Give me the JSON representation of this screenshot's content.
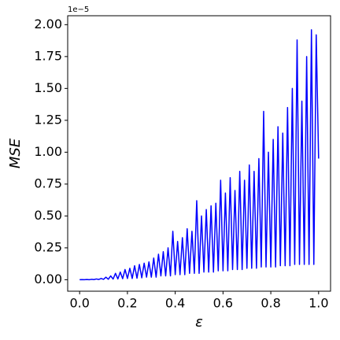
{
  "chart_data": {
    "type": "line",
    "xlabel": "ε",
    "ylabel": "MSE",
    "y_offset_label": "1e−5",
    "x": [
      0.0,
      0.01,
      0.02,
      0.03,
      0.04,
      0.05,
      0.06,
      0.07,
      0.08,
      0.09,
      0.1,
      0.11,
      0.12,
      0.13,
      0.14,
      0.15,
      0.16,
      0.17,
      0.18,
      0.19,
      0.2,
      0.21,
      0.22,
      0.23,
      0.24,
      0.25,
      0.26,
      0.27,
      0.28,
      0.29,
      0.3,
      0.31,
      0.32,
      0.33,
      0.34,
      0.35,
      0.36,
      0.37,
      0.38,
      0.39,
      0.4,
      0.41,
      0.42,
      0.43,
      0.44,
      0.45,
      0.46,
      0.47,
      0.48,
      0.49,
      0.5,
      0.51,
      0.52,
      0.53,
      0.54,
      0.55,
      0.56,
      0.57,
      0.58,
      0.59,
      0.6,
      0.61,
      0.62,
      0.63,
      0.64,
      0.65,
      0.66,
      0.67,
      0.68,
      0.69,
      0.7,
      0.71,
      0.72,
      0.73,
      0.74,
      0.75,
      0.76,
      0.77,
      0.78,
      0.79,
      0.8,
      0.81,
      0.82,
      0.83,
      0.84,
      0.85,
      0.86,
      0.87,
      0.88,
      0.89,
      0.9,
      0.91,
      0.92,
      0.93,
      0.94,
      0.95,
      0.96,
      0.97,
      0.98,
      0.99,
      1.0
    ],
    "series": [
      {
        "name": "MSE",
        "color": "#0000ff",
        "values": [
          0,
          0.001,
          0,
          0.002,
          0,
          0.003,
          0.001,
          0.006,
          0.002,
          0.01,
          0.003,
          0.02,
          0.004,
          0.03,
          0.005,
          0.05,
          0.006,
          0.06,
          0.008,
          0.08,
          0.01,
          0.09,
          0.01,
          0.11,
          0.012,
          0.12,
          0.015,
          0.13,
          0.02,
          0.14,
          0.02,
          0.17,
          0.02,
          0.2,
          0.03,
          0.22,
          0.03,
          0.25,
          0.03,
          0.38,
          0.04,
          0.3,
          0.04,
          0.33,
          0.04,
          0.4,
          0.05,
          0.38,
          0.05,
          0.62,
          0.05,
          0.5,
          0.06,
          0.55,
          0.06,
          0.58,
          0.06,
          0.6,
          0.07,
          0.78,
          0.07,
          0.68,
          0.07,
          0.8,
          0.08,
          0.7,
          0.08,
          0.85,
          0.08,
          0.78,
          0.09,
          0.9,
          0.09,
          0.85,
          0.09,
          0.95,
          0.1,
          1.32,
          0.1,
          1.0,
          0.1,
          1.1,
          0.1,
          1.2,
          0.11,
          1.15,
          0.11,
          1.35,
          0.11,
          1.5,
          0.12,
          1.88,
          0.12,
          1.4,
          0.12,
          1.75,
          0.12,
          1.96,
          0.12,
          1.92,
          0.95
        ]
      }
    ],
    "xlim": [
      -0.05,
      1.05
    ],
    "xticks": [
      {
        "value": 0,
        "label": "0.0"
      },
      0.2,
      0.4,
      0.6,
      0.8,
      {
        "value": 1,
        "label": "1.0"
      }
    ],
    "ylim": [
      -0.09,
      2.07
    ],
    "yticks": [
      {
        "value": 0,
        "label": "0.00"
      },
      0.25,
      {
        "value": 0.5,
        "label": "0.50"
      },
      0.75,
      {
        "value": 1,
        "label": "1.00"
      },
      1.25,
      {
        "value": 1.5,
        "label": "1.50"
      },
      1.75,
      {
        "value": 2,
        "label": "2.00"
      }
    ],
    "grid": false
  }
}
